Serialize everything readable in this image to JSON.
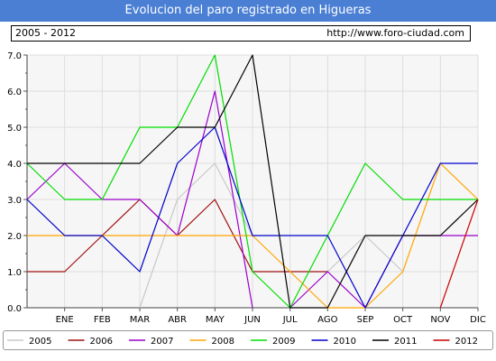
{
  "header": {
    "title": "Evolucion del paro registrado en Higueras",
    "period": "2005 - 2012",
    "website": "http://www.foro-ciudad.com"
  },
  "chart_data": {
    "type": "line",
    "categories": [
      "ENE",
      "FEB",
      "MAR",
      "ABR",
      "MAY",
      "JUN",
      "JUL",
      "AGO",
      "SEP",
      "OCT",
      "NOV",
      "DIC"
    ],
    "y_ticks": [
      "0.0",
      "1.0",
      "2.0",
      "3.0",
      "4.0",
      "5.0",
      "6.0",
      "7.0"
    ],
    "ylim": [
      0,
      7
    ],
    "grid": true,
    "legend_position": "bottom",
    "series": [
      {
        "name": "2005",
        "color": "#c8c8c8",
        "x": [
          3,
          4,
          5,
          6
        ],
        "values": [
          0,
          3,
          4,
          2
        ]
      },
      {
        "name": "2005",
        "color": "#c8c8c8",
        "x": [
          8,
          9,
          10
        ],
        "values": [
          1,
          2,
          1
        ]
      },
      {
        "name": "2006",
        "color": "#a01010",
        "x": [
          0,
          1,
          2,
          3,
          4,
          5,
          6,
          7,
          8
        ],
        "values": [
          1,
          1,
          2,
          3,
          2,
          3,
          1,
          1,
          1
        ]
      },
      {
        "name": "2007",
        "color": "#9a00cc",
        "x": [
          0,
          1,
          2,
          3,
          4,
          5,
          6
        ],
        "values": [
          3,
          4,
          3,
          3,
          2,
          6,
          0
        ]
      },
      {
        "name": "2007",
        "color": "#9a00cc",
        "x": [
          7,
          8,
          9,
          10,
          11,
          12
        ],
        "values": [
          0,
          1,
          0,
          2,
          2,
          2
        ]
      },
      {
        "name": "2008",
        "color": "#ffa500",
        "x": [
          0,
          1,
          2,
          3,
          4,
          5,
          6,
          7,
          8,
          9,
          10,
          11,
          12
        ],
        "values": [
          2,
          2,
          2,
          2,
          2,
          2,
          2,
          1,
          0,
          0,
          1,
          4,
          3
        ]
      },
      {
        "name": "2009",
        "color": "#00dd00",
        "x": [
          0,
          1,
          2,
          3,
          4,
          5,
          6,
          7,
          8,
          9,
          10,
          11,
          12
        ],
        "values": [
          4,
          3,
          3,
          5,
          5,
          7,
          1,
          0,
          2,
          4,
          3,
          3,
          3
        ]
      },
      {
        "name": "2010",
        "color": "#0000cc",
        "x": [
          0,
          1,
          2,
          3,
          4,
          5,
          6,
          7,
          8,
          9,
          10,
          11,
          12
        ],
        "values": [
          3,
          2,
          2,
          1,
          4,
          5,
          2,
          2,
          2,
          0,
          2,
          4,
          4
        ]
      },
      {
        "name": "2011",
        "color": "#000000",
        "x": [
          0,
          1,
          2,
          3,
          4,
          5,
          6,
          7,
          8,
          9,
          10,
          11,
          12
        ],
        "values": [
          4,
          4,
          4,
          4,
          5,
          5,
          7,
          0,
          0,
          2,
          2,
          2,
          3
        ]
      },
      {
        "name": "2012",
        "color": "#cc0000",
        "x": [
          11,
          12
        ],
        "values": [
          0,
          3
        ]
      }
    ],
    "legend": [
      {
        "name": "2005",
        "color": "#c8c8c8"
      },
      {
        "name": "2006",
        "color": "#a01010"
      },
      {
        "name": "2007",
        "color": "#9a00cc"
      },
      {
        "name": "2008",
        "color": "#ffa500"
      },
      {
        "name": "2009",
        "color": "#00dd00"
      },
      {
        "name": "2010",
        "color": "#0000cc"
      },
      {
        "name": "2011",
        "color": "#000000"
      },
      {
        "name": "2012",
        "color": "#cc0000"
      }
    ]
  }
}
